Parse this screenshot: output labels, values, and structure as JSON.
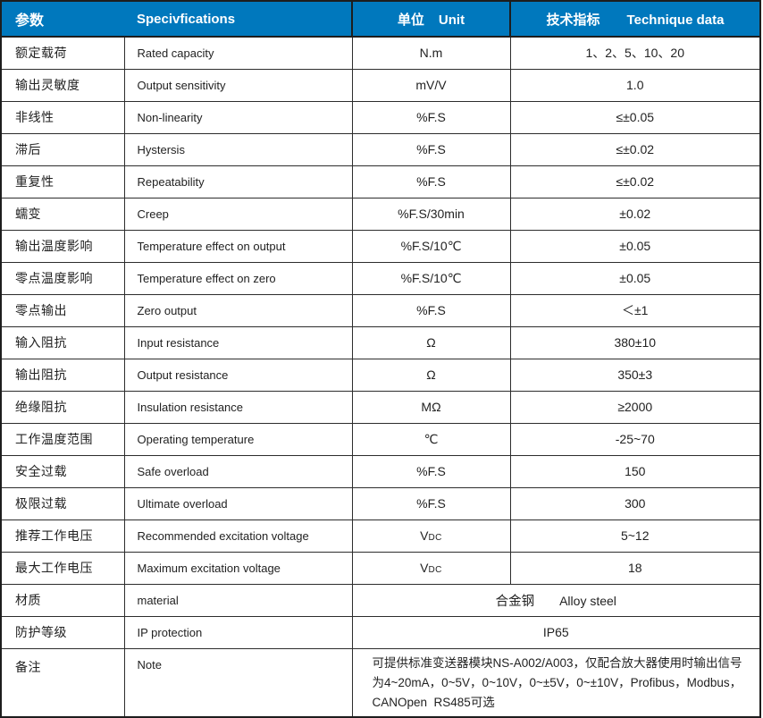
{
  "header": {
    "col1": "参数",
    "col2": "Specivfications",
    "col3_zh": "单位",
    "col3_en": "Unit",
    "col4_zh": "技术指标",
    "col4_en": "Technique data"
  },
  "rows": [
    {
      "cn": "额定载荷",
      "en": "Rated capacity",
      "unit": "N.m",
      "value": "1、2、5、10、20"
    },
    {
      "cn": "输出灵敏度",
      "en": "Output sensitivity",
      "unit": "mV/V",
      "value": "1.0"
    },
    {
      "cn": "非线性",
      "en": "Non-linearity",
      "unit": "%F.S",
      "value": "≤±0.05"
    },
    {
      "cn": "滞后",
      "en": "Hystersis",
      "unit": "%F.S",
      "value": "≤±0.02"
    },
    {
      "cn": "重复性",
      "en": "Repeatability",
      "unit": "%F.S",
      "value": "≤±0.02"
    },
    {
      "cn": "蠕变",
      "en": "Creep",
      "unit": "%F.S/30min",
      "value": "±0.02"
    },
    {
      "cn": "输出温度影响",
      "en": "Temperature effect on output",
      "unit": "%F.S/10℃",
      "value": "±0.05"
    },
    {
      "cn": "零点温度影响",
      "en": "Temperature effect on zero",
      "unit": "%F.S/10℃",
      "value": "±0.05"
    },
    {
      "cn": "零点输出",
      "en": "Zero output",
      "unit": "%F.S",
      "value": "＜±1"
    },
    {
      "cn": "输入阻抗",
      "en": "Input resistance",
      "unit": "Ω",
      "value": "380±10"
    },
    {
      "cn": "输出阻抗",
      "en": "Output resistance",
      "unit": "Ω",
      "value": "350±3"
    },
    {
      "cn": "绝缘阻抗",
      "en": "Insulation resistance",
      "unit": "MΩ",
      "value": "≥2000"
    },
    {
      "cn": "工作温度范围",
      "en": "Operating temperature",
      "unit": "℃",
      "value": "-25~70"
    },
    {
      "cn": "安全过载",
      "en": "Safe overload",
      "unit": "%F.S",
      "value": "150"
    },
    {
      "cn": "极限过载",
      "en": "Ultimate overload",
      "unit": "%F.S",
      "value": "300"
    },
    {
      "cn": "推荐工作电压",
      "en": "Recommended excitation voltage",
      "unit_main": "V",
      "unit_sub": "DC",
      "value": "5~12"
    },
    {
      "cn": "最大工作电压",
      "en": "Maximum excitation voltage",
      "unit_main": "V",
      "unit_sub": "DC",
      "value": "18"
    }
  ],
  "merged_rows": [
    {
      "cn": "材质",
      "en": "material",
      "value_zh": "合金钢",
      "value_en": "Alloy steel"
    },
    {
      "cn": "防护等级",
      "en": "IP protection",
      "value": "IP65"
    },
    {
      "cn": "备注",
      "en": "Note",
      "value": "可提供标准变送器模块NS-A002/A003，仅配合放大器使用时输出信号为4~20mA，0~5V，0~10V，0~±5V，0~±10V，Profibus，Modbus，CANOpen  RS485可选"
    }
  ],
  "colors": {
    "header_bg": "#0078BD",
    "header_text": "#ffffff",
    "border": "#2d2d2d",
    "outer_border": "#1d1d1d",
    "body_text": "#222222"
  }
}
